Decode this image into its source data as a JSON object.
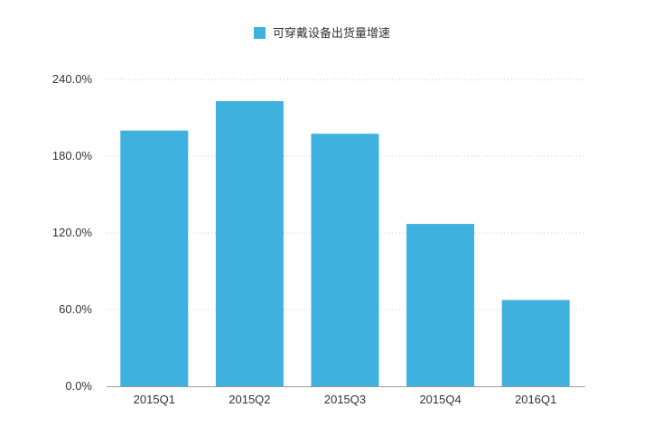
{
  "chart_data": {
    "type": "bar",
    "categories": [
      "2015Q1",
      "2015Q2",
      "2015Q3",
      "2015Q4",
      "2016Q1"
    ],
    "series": [
      {
        "name": "可穿戴设备出货量增速",
        "values": [
          200.0,
          223.0,
          197.5,
          127.0,
          67.5
        ]
      }
    ],
    "yticks": [
      "0.0%",
      "60.0%",
      "120.0%",
      "180.0%",
      "240.0%"
    ],
    "ylim": [
      0,
      240
    ],
    "grid": true,
    "legend_position": "top-center",
    "colors": {
      "bar": "#3eb1de",
      "grid": "#c8c8c8",
      "axis": "#9a9a9a",
      "text": "#333333"
    }
  }
}
